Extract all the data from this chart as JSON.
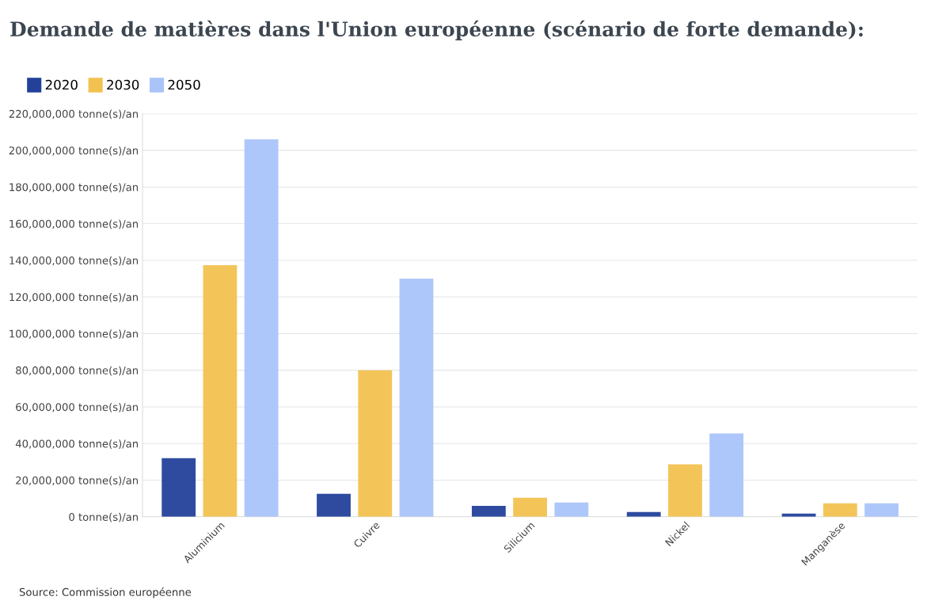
{
  "chart_data": {
    "type": "bar",
    "title": "Demande de matières dans l'Union européenne (scénario de forte demande):",
    "categories": [
      "Aluminium",
      "Cuivre",
      "Silicium",
      "Nickel",
      "Manganèse"
    ],
    "series": [
      {
        "name": "2020",
        "color": "#23419b",
        "values": [
          32000000,
          12600000,
          6000000,
          2600000,
          1700000
        ]
      },
      {
        "name": "2030",
        "color": "#f2c250",
        "values": [
          137300000,
          80000000,
          10400000,
          28600000,
          7400000
        ]
      },
      {
        "name": "2050",
        "color": "#aac4fa",
        "values": [
          206000000,
          130000000,
          7800000,
          45500000,
          7400000
        ]
      }
    ],
    "ylim": [
      0,
      220000000
    ],
    "yticks": [
      {
        "value": 0,
        "label": "0 tonne(s)/an"
      },
      {
        "value": 20000000,
        "label": "20,000,000 tonne(s)/an"
      },
      {
        "value": 40000000,
        "label": "40,000,000 tonne(s)/an"
      },
      {
        "value": 60000000,
        "label": "60,000,000 tonne(s)/an"
      },
      {
        "value": 80000000,
        "label": "80,000,000 tonne(s)/an"
      },
      {
        "value": 100000000,
        "label": "100,000,000 tonne(s)/an"
      },
      {
        "value": 120000000,
        "label": "120,000,000 tonne(s)/an"
      },
      {
        "value": 140000000,
        "label": "140,000,000 tonne(s)/an"
      },
      {
        "value": 160000000,
        "label": "160,000,000 tonne(s)/an"
      },
      {
        "value": 180000000,
        "label": "180,000,000 tonne(s)/an"
      },
      {
        "value": 200000000,
        "label": "200,000,000 tonne(s)/an"
      },
      {
        "value": 220000000,
        "label": "220,000,000 tonne(s)/an"
      }
    ],
    "grid": "y",
    "legend": "top left",
    "annotations": [
      "Source: Commission européenne"
    ]
  }
}
